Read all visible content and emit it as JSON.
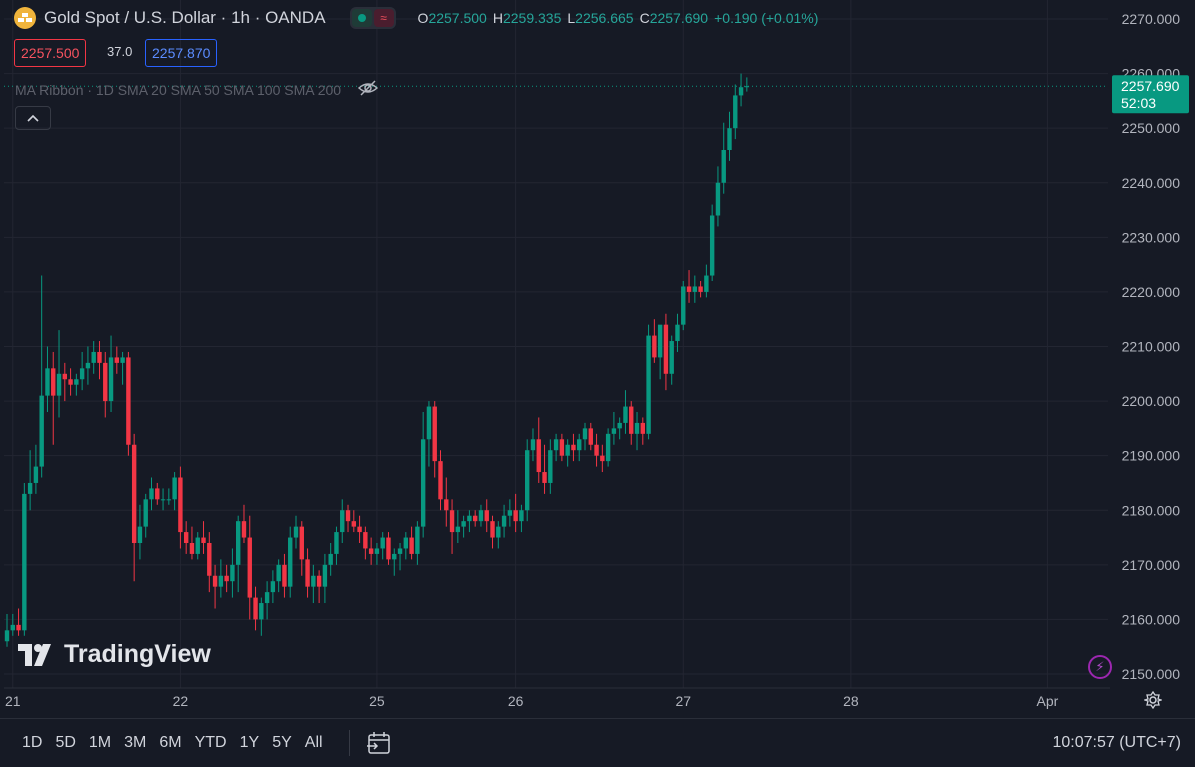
{
  "symbol": {
    "title": "Gold Spot / U.S. Dollar · 1h · OANDA",
    "ohlc": [
      {
        "k": "O",
        "v": "2257.500"
      },
      {
        "k": "H",
        "v": "2259.335"
      },
      {
        "k": "L",
        "v": "2256.665"
      },
      {
        "k": "C",
        "v": "2257.690"
      }
    ],
    "change": "+0.190 (+0.01%)",
    "bid": "2257.500",
    "spread": "37.0",
    "ask": "2257.870"
  },
  "indicators": {
    "ma_ribbon_label": "MA Ribbon · 1D SMA 20 SMA 50 SMA 100 SMA 200",
    "collapse_icon": "chevron-up-icon"
  },
  "price_tag": {
    "price": "2257.690",
    "countdown": "52:03",
    "color": "#089981"
  },
  "logo_text": "TradingView",
  "bottom": {
    "ranges": [
      "1D",
      "5D",
      "1M",
      "3M",
      "6M",
      "YTD",
      "1Y",
      "5Y",
      "All"
    ],
    "clock": "10:07:57 (UTC+7)"
  },
  "colors": {
    "bg": "#161a25",
    "up": "#089981",
    "down": "#f23645",
    "grid": "#232632",
    "axis_text": "#b2b5be"
  },
  "chart_data": {
    "type": "candlestick",
    "title": "Gold Spot / U.S. Dollar · 1h · OANDA",
    "ylim": [
      2147,
      2272
    ],
    "yticks": [
      2150,
      2160,
      2170,
      2180,
      2190,
      2200,
      2210,
      2220,
      2230,
      2240,
      2250,
      2260,
      2270
    ],
    "ytick_labels": [
      "2150.000",
      "2160.000",
      "2170.000",
      "2180.000",
      "2190.000",
      "2200.000",
      "2210.000",
      "2220.000",
      "2230.000",
      "2240.000",
      "2250.000",
      "2260.000",
      "2270.000"
    ],
    "xtick_labels": [
      {
        "label": "21",
        "index": 1
      },
      {
        "label": "22",
        "index": 30
      },
      {
        "label": "25",
        "index": 64
      },
      {
        "label": "26",
        "index": 88
      },
      {
        "label": "27",
        "index": 117
      },
      {
        "label": "28",
        "index": 146
      },
      {
        "label": "Apr",
        "index": 180
      }
    ],
    "current_price": 2257.69,
    "candles": [
      [
        2156,
        2161,
        2155,
        2158
      ],
      [
        2158,
        2161,
        2157,
        2159
      ],
      [
        2159,
        2162,
        2157,
        2158
      ],
      [
        2158,
        2185,
        2157,
        2183
      ],
      [
        2183,
        2191,
        2180,
        2185
      ],
      [
        2185,
        2192,
        2183,
        2188
      ],
      [
        2188,
        2223,
        2186,
        2201
      ],
      [
        2201,
        2210,
        2198,
        2206
      ],
      [
        2206,
        2209,
        2192,
        2201
      ],
      [
        2201,
        2213,
        2197,
        2205
      ],
      [
        2205,
        2207,
        2200,
        2204
      ],
      [
        2204,
        2206,
        2201,
        2203
      ],
      [
        2203,
        2205,
        2201,
        2204
      ],
      [
        2204,
        2209,
        2202,
        2206
      ],
      [
        2206,
        2210,
        2203,
        2207
      ],
      [
        2207,
        2211,
        2205,
        2209
      ],
      [
        2209,
        2211,
        2204,
        2207
      ],
      [
        2207,
        2209,
        2197,
        2200
      ],
      [
        2200,
        2212,
        2198,
        2208
      ],
      [
        2208,
        2210,
        2205,
        2207
      ],
      [
        2207,
        2209,
        2203,
        2208
      ],
      [
        2208,
        2209,
        2190,
        2192
      ],
      [
        2192,
        2194,
        2167,
        2174
      ],
      [
        2174,
        2181,
        2171,
        2177
      ],
      [
        2177,
        2183,
        2175,
        2182
      ],
      [
        2182,
        2186,
        2180,
        2184
      ],
      [
        2184,
        2185,
        2181,
        2182
      ],
      [
        2182,
        2184,
        2180,
        2182
      ],
      [
        2182,
        2184,
        2181,
        2182
      ],
      [
        2182,
        2187,
        2180,
        2186
      ],
      [
        2186,
        2188,
        2173,
        2176
      ],
      [
        2176,
        2178,
        2172,
        2174
      ],
      [
        2174,
        2177,
        2171,
        2172
      ],
      [
        2172,
        2176,
        2171,
        2175
      ],
      [
        2175,
        2178,
        2172,
        2174
      ],
      [
        2174,
        2176,
        2165,
        2168
      ],
      [
        2168,
        2170,
        2162,
        2166
      ],
      [
        2166,
        2171,
        2164,
        2168
      ],
      [
        2168,
        2170,
        2165,
        2167
      ],
      [
        2167,
        2173,
        2164,
        2170
      ],
      [
        2170,
        2179,
        2165,
        2178
      ],
      [
        2178,
        2181,
        2174,
        2175
      ],
      [
        2175,
        2179,
        2160,
        2164
      ],
      [
        2164,
        2166,
        2158,
        2160
      ],
      [
        2160,
        2164,
        2157,
        2163
      ],
      [
        2163,
        2167,
        2160,
        2165
      ],
      [
        2165,
        2169,
        2163,
        2167
      ],
      [
        2167,
        2171,
        2165,
        2170
      ],
      [
        2170,
        2172,
        2164,
        2166
      ],
      [
        2166,
        2177,
        2164,
        2175
      ],
      [
        2175,
        2179,
        2173,
        2177
      ],
      [
        2177,
        2178,
        2168,
        2171
      ],
      [
        2171,
        2173,
        2164,
        2166
      ],
      [
        2166,
        2170,
        2163,
        2168
      ],
      [
        2168,
        2169,
        2163,
        2166
      ],
      [
        2166,
        2172,
        2163,
        2170
      ],
      [
        2170,
        2174,
        2168,
        2172
      ],
      [
        2172,
        2177,
        2170,
        2176
      ],
      [
        2176,
        2182,
        2174,
        2180
      ],
      [
        2180,
        2181,
        2176,
        2178
      ],
      [
        2178,
        2180,
        2176,
        2177
      ],
      [
        2177,
        2179,
        2174,
        2176
      ],
      [
        2176,
        2177,
        2171,
        2173
      ],
      [
        2173,
        2175,
        2170,
        2172
      ],
      [
        2172,
        2174,
        2170,
        2173
      ],
      [
        2173,
        2176,
        2171,
        2175
      ],
      [
        2175,
        2176,
        2170,
        2171
      ],
      [
        2171,
        2173,
        2168,
        2172
      ],
      [
        2172,
        2174,
        2169,
        2173
      ],
      [
        2173,
        2176,
        2171,
        2175
      ],
      [
        2175,
        2177,
        2171,
        2172
      ],
      [
        2172,
        2178,
        2170,
        2177
      ],
      [
        2177,
        2198,
        2175,
        2193
      ],
      [
        2193,
        2200,
        2188,
        2199
      ],
      [
        2199,
        2200,
        2186,
        2189
      ],
      [
        2189,
        2191,
        2180,
        2182
      ],
      [
        2182,
        2186,
        2177,
        2180
      ],
      [
        2180,
        2182,
        2172,
        2176
      ],
      [
        2176,
        2180,
        2174,
        2177
      ],
      [
        2177,
        2179,
        2175,
        2178
      ],
      [
        2178,
        2180,
        2176,
        2179
      ],
      [
        2179,
        2180,
        2177,
        2178
      ],
      [
        2178,
        2181,
        2177,
        2180
      ],
      [
        2180,
        2182,
        2176,
        2178
      ],
      [
        2178,
        2179,
        2173,
        2175
      ],
      [
        2175,
        2178,
        2173,
        2177
      ],
      [
        2177,
        2181,
        2175,
        2179
      ],
      [
        2179,
        2182,
        2177,
        2180
      ],
      [
        2180,
        2183,
        2176,
        2178
      ],
      [
        2178,
        2181,
        2176,
        2180
      ],
      [
        2180,
        2193,
        2178,
        2191
      ],
      [
        2191,
        2195,
        2189,
        2193
      ],
      [
        2193,
        2197,
        2185,
        2187
      ],
      [
        2187,
        2192,
        2183,
        2185
      ],
      [
        2185,
        2193,
        2183,
        2191
      ],
      [
        2191,
        2194,
        2189,
        2193
      ],
      [
        2193,
        2194,
        2189,
        2190
      ],
      [
        2190,
        2193,
        2188,
        2192
      ],
      [
        2192,
        2194,
        2189,
        2191
      ],
      [
        2191,
        2194,
        2189,
        2193
      ],
      [
        2193,
        2196,
        2191,
        2195
      ],
      [
        2195,
        2196,
        2191,
        2192
      ],
      [
        2192,
        2194,
        2188,
        2190
      ],
      [
        2190,
        2192,
        2187,
        2189
      ],
      [
        2189,
        2195,
        2188,
        2194
      ],
      [
        2194,
        2198,
        2192,
        2195
      ],
      [
        2195,
        2197,
        2193,
        2196
      ],
      [
        2196,
        2202,
        2194,
        2199
      ],
      [
        2199,
        2200,
        2192,
        2194
      ],
      [
        2194,
        2198,
        2191,
        2196
      ],
      [
        2196,
        2197,
        2192,
        2194
      ],
      [
        2194,
        2214,
        2193,
        2212
      ],
      [
        2212,
        2215,
        2207,
        2208
      ],
      [
        2208,
        2213,
        2204,
        2214
      ],
      [
        2214,
        2216,
        2202,
        2205
      ],
      [
        2205,
        2212,
        2203,
        2211
      ],
      [
        2211,
        2216,
        2209,
        2214
      ],
      [
        2214,
        2222,
        2213,
        2221
      ],
      [
        2221,
        2224,
        2218,
        2220
      ],
      [
        2220,
        2223,
        2218,
        2221
      ],
      [
        2221,
        2222,
        2219,
        2220
      ],
      [
        2220,
        2225,
        2219,
        2223
      ],
      [
        2223,
        2236,
        2222,
        2234
      ],
      [
        2234,
        2243,
        2232,
        2240
      ],
      [
        2240,
        2251,
        2238,
        2246
      ],
      [
        2246,
        2253,
        2244,
        2250
      ],
      [
        2250,
        2258,
        2248,
        2256
      ],
      [
        2256,
        2260,
        2254,
        2257.5
      ],
      [
        2257.5,
        2259.3,
        2256.7,
        2257.69
      ]
    ]
  }
}
